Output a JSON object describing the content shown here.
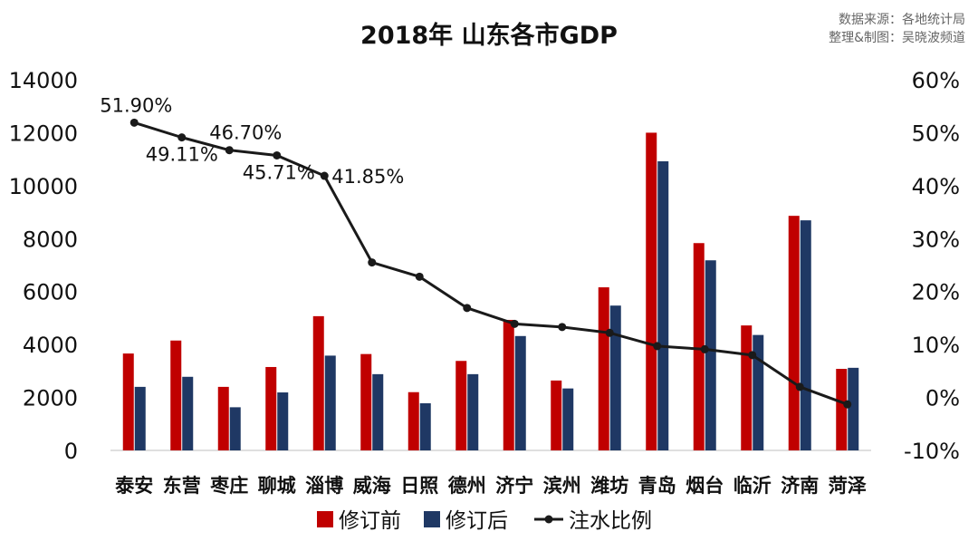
{
  "source_lines": [
    "数据来源：各地统计局",
    "整理&制图：吴晓波频道"
  ],
  "chart_data": {
    "type": "bar+line",
    "title": "2018年  山东各市GDP",
    "categories": [
      "泰安",
      "东营",
      "枣庄",
      "聊城",
      "淄博",
      "威海",
      "日照",
      "德州",
      "济宁",
      "滨州",
      "潍坊",
      "青岛",
      "烟台",
      "临沂",
      "济南",
      "菏泽"
    ],
    "left_axis": {
      "ylim": [
        0,
        14000
      ],
      "ticks": [
        0,
        2000,
        4000,
        6000,
        8000,
        10000,
        12000,
        14000
      ],
      "tick_labels": [
        "0",
        "2000",
        "4000",
        "6000",
        "8000",
        "10000",
        "12000",
        "14000"
      ]
    },
    "right_axis": {
      "ylim": [
        -10,
        60
      ],
      "ticks": [
        -10,
        0,
        10,
        20,
        30,
        40,
        50,
        60
      ],
      "tick_labels": [
        "-10%",
        "0%",
        "10%",
        "20%",
        "30%",
        "40%",
        "50%",
        "60%"
      ]
    },
    "series": [
      {
        "name": "修订前",
        "type": "bar",
        "axis": "left",
        "color": "#C00000",
        "values": [
          3660,
          4150,
          2400,
          3150,
          5070,
          3640,
          2200,
          3380,
          4930,
          2640,
          6160,
          12000,
          7830,
          4720,
          8860,
          3080
        ]
      },
      {
        "name": "修订后",
        "type": "bar",
        "axis": "left",
        "color": "#1F3864",
        "values": [
          2400,
          2780,
          1630,
          2190,
          3580,
          2880,
          1780,
          2880,
          4320,
          2340,
          5470,
          10920,
          7180,
          4360,
          8690,
          3120
        ]
      },
      {
        "name": "注水比例",
        "type": "line",
        "axis": "right",
        "color": "#1a1a1a",
        "values": [
          51.9,
          49.11,
          46.7,
          45.71,
          41.85,
          25.5,
          22.8,
          16.9,
          13.9,
          13.3,
          12.2,
          9.7,
          9.1,
          8.0,
          2.0,
          -1.3
        ]
      }
    ],
    "data_labels": [
      {
        "series": "注水比例",
        "index": 0,
        "text": "51.90%"
      },
      {
        "series": "注水比例",
        "index": 1,
        "text": "49.11%"
      },
      {
        "series": "注水比例",
        "index": 2,
        "text": "46.70%"
      },
      {
        "series": "注水比例",
        "index": 3,
        "text": "45.71%"
      },
      {
        "series": "注水比例",
        "index": 4,
        "text": "41.85%"
      }
    ],
    "legend_position": "bottom",
    "grid": false
  }
}
